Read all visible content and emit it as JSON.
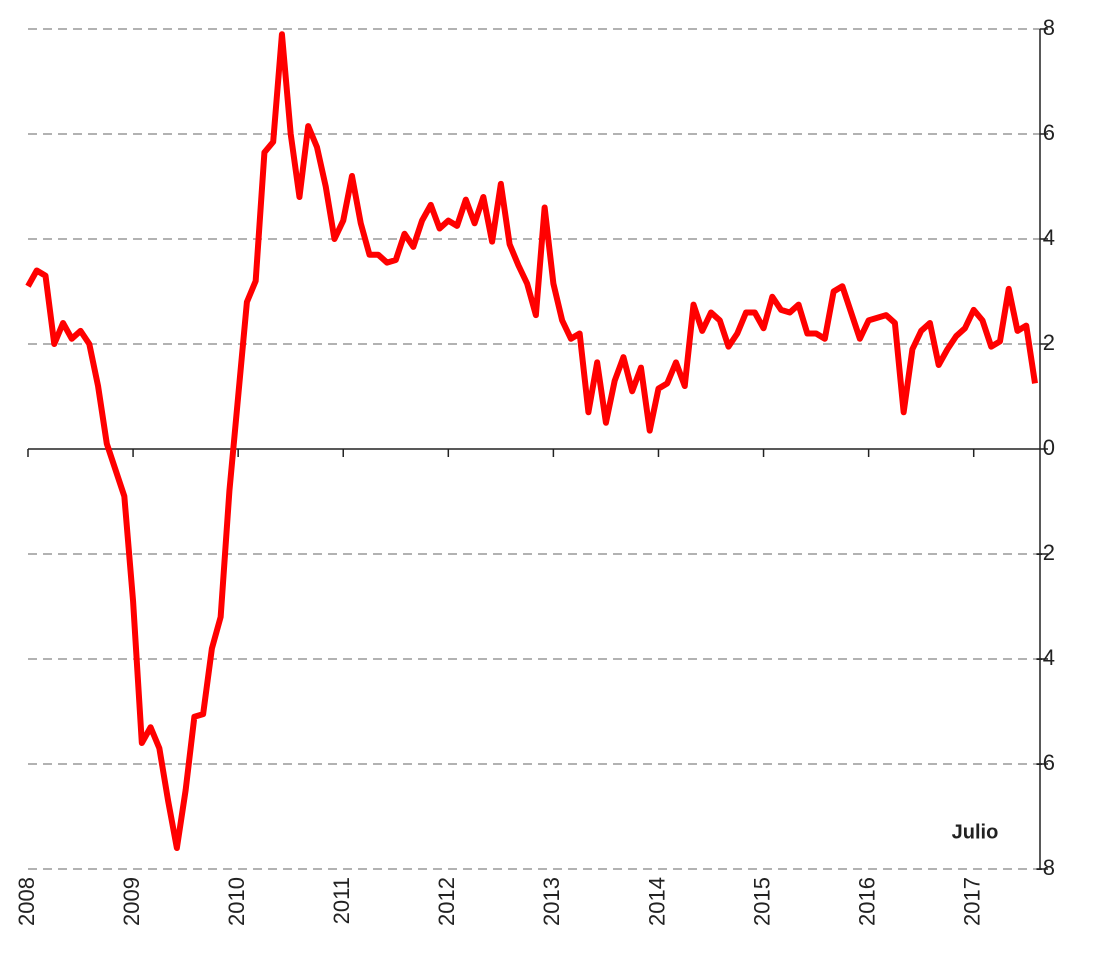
{
  "chart_data": {
    "type": "line",
    "categories": [
      "2008",
      null,
      null,
      null,
      null,
      null,
      null,
      null,
      null,
      null,
      null,
      null,
      "2009",
      null,
      null,
      null,
      null,
      null,
      null,
      null,
      null,
      null,
      null,
      null,
      "2010",
      null,
      null,
      null,
      null,
      null,
      null,
      null,
      null,
      null,
      null,
      null,
      "2011",
      null,
      null,
      null,
      null,
      null,
      null,
      null,
      null,
      null,
      null,
      null,
      "2012",
      null,
      null,
      null,
      null,
      null,
      null,
      null,
      null,
      null,
      null,
      null,
      "2013",
      null,
      null,
      null,
      null,
      null,
      null,
      null,
      null,
      null,
      null,
      null,
      "2014",
      null,
      null,
      null,
      null,
      null,
      null,
      null,
      null,
      null,
      null,
      null,
      "2015",
      null,
      null,
      null,
      null,
      null,
      null,
      null,
      null,
      null,
      null,
      null,
      "2016",
      null,
      null,
      null,
      null,
      null,
      null,
      null,
      null,
      null,
      null,
      null,
      "2017",
      null,
      null,
      null,
      null,
      null,
      null,
      null
    ],
    "series": [
      {
        "color": "#ff0000",
        "values": [
          3.1,
          3.4,
          3.3,
          2.0,
          2.4,
          2.1,
          2.25,
          2.0,
          1.2,
          0.1,
          -0.4,
          -0.9,
          -2.9,
          -5.6,
          -5.3,
          -5.7,
          -6.7,
          -7.6,
          -6.5,
          -5.1,
          -5.05,
          -3.8,
          -3.2,
          -0.8,
          1.0,
          2.8,
          3.2,
          5.65,
          5.85,
          7.9,
          6.0,
          4.8,
          6.15,
          5.75,
          5.0,
          4.0,
          4.35,
          5.2,
          4.3,
          3.7,
          3.7,
          3.55,
          3.6,
          4.1,
          3.85,
          4.35,
          4.65,
          4.2,
          4.35,
          4.25,
          4.75,
          4.3,
          4.8,
          3.95,
          5.05,
          3.9,
          3.5,
          3.15,
          2.55,
          4.6,
          3.15,
          2.45,
          2.1,
          2.2,
          0.7,
          1.65,
          0.5,
          1.3,
          1.75,
          1.1,
          1.55,
          0.35,
          1.15,
          1.25,
          1.65,
          1.2,
          2.75,
          2.25,
          2.6,
          2.45,
          1.95,
          2.2,
          2.6,
          2.6,
          2.3,
          2.9,
          2.65,
          2.6,
          2.75,
          2.2,
          2.2,
          2.1,
          3.0,
          3.1,
          2.6,
          2.1,
          2.45,
          2.5,
          2.55,
          2.4,
          0.7,
          1.9,
          2.25,
          2.4,
          1.6,
          1.9,
          2.15,
          2.3,
          2.65,
          2.45,
          1.95,
          2.05,
          3.05,
          2.25,
          2.35,
          1.25
        ]
      }
    ],
    "ylim": [
      -8,
      8
    ],
    "yticks": [
      -8,
      -6,
      -4,
      -2,
      0,
      2,
      4,
      6,
      8
    ],
    "grid": true,
    "annotation": "Julio"
  }
}
